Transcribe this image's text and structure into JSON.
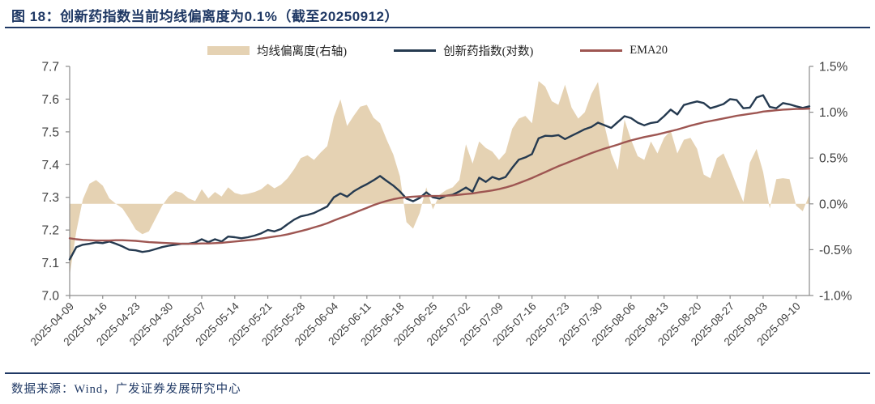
{
  "header": {
    "title": "图 18：创新药指数当前均线偏离度为0.1%（截至20250912）"
  },
  "footer": {
    "source": "数据来源：Wind，广发证券发展研究中心"
  },
  "colors": {
    "accent_navy": "#1f3864",
    "area_tan": "#e5d2b3",
    "index_line": "#253a50",
    "ema_line": "#9e5652",
    "axis_text": "#3f3f3f",
    "spine": "#8c8c8c"
  },
  "legend": [
    {
      "label": "均线偏离度(右轴)",
      "type": "area",
      "color": "#e5d2b3"
    },
    {
      "label": "创新药指数(对数)",
      "type": "line",
      "color": "#253a50"
    },
    {
      "label": "EMA20",
      "type": "line",
      "color": "#9e5652"
    }
  ],
  "chart_data": {
    "type": "line",
    "title": "图 18：创新药指数当前均线偏离度为0.1%（截至20250912）",
    "n_points": 113,
    "x_tick_labels": [
      "2025-04-09",
      "2025-04-16",
      "2025-04-23",
      "2025-04-30",
      "2025-05-07",
      "2025-05-14",
      "2025-05-21",
      "2025-05-28",
      "2025-06-04",
      "2025-06-11",
      "2025-06-18",
      "2025-06-25",
      "2025-07-02",
      "2025-07-09",
      "2025-07-16",
      "2025-07-23",
      "2025-07-30",
      "2025-08-06",
      "2025-08-13",
      "2025-08-20",
      "2025-08-27",
      "2025-09-03",
      "2025-09-10"
    ],
    "x_tick_every": 5,
    "left_axis": {
      "min": 7.0,
      "max": 7.7,
      "tick_values": [
        7.7,
        7.6,
        7.5,
        7.4,
        7.3,
        7.2,
        7.1,
        7.0
      ],
      "tick_labels": [
        "7.7",
        "7.6",
        "7.5",
        "7.4",
        "7.3",
        "7.2",
        "7.1",
        "7.0"
      ]
    },
    "right_axis": {
      "min": -1.0,
      "max": 1.5,
      "tick_values": [
        1.5,
        1.0,
        0.5,
        0.0,
        -0.5,
        -1.0
      ],
      "tick_labels": [
        "1.5%",
        "1.0%",
        "0.5%",
        "0.0%",
        "-0.5%",
        "-1.0%"
      ]
    },
    "series": [
      {
        "name": "均线偏离度(右轴)",
        "type": "area",
        "axis": "right",
        "color": "#e5d2b3",
        "values": [
          -0.78,
          -0.3,
          0.05,
          0.22,
          0.26,
          0.2,
          0.06,
          0.0,
          -0.05,
          -0.16,
          -0.28,
          -0.33,
          -0.3,
          -0.16,
          -0.02,
          0.08,
          0.14,
          0.12,
          0.06,
          0.03,
          0.16,
          0.06,
          0.13,
          0.08,
          0.18,
          0.12,
          0.1,
          0.11,
          0.13,
          0.16,
          0.22,
          0.17,
          0.21,
          0.28,
          0.38,
          0.5,
          0.53,
          0.48,
          0.56,
          0.63,
          0.95,
          1.14,
          0.85,
          0.96,
          1.06,
          1.08,
          0.94,
          0.88,
          0.7,
          0.54,
          0.3,
          -0.2,
          -0.27,
          -0.1,
          0.18,
          -0.06,
          0.1,
          0.15,
          0.18,
          0.26,
          0.65,
          0.44,
          0.68,
          0.61,
          0.57,
          0.48,
          0.56,
          0.82,
          0.93,
          0.96,
          0.88,
          1.34,
          1.28,
          1.12,
          1.08,
          1.3,
          1.05,
          0.93,
          1.0,
          1.2,
          1.33,
          0.85,
          0.55,
          0.37,
          0.92,
          0.7,
          0.52,
          0.48,
          0.68,
          0.55,
          0.72,
          0.8,
          0.55,
          0.7,
          0.72,
          0.6,
          0.32,
          0.28,
          0.5,
          0.55,
          0.38,
          0.2,
          0.02,
          0.45,
          0.6,
          0.35,
          -0.05,
          0.27,
          0.28,
          0.27,
          -0.02,
          -0.08,
          0.1
        ]
      },
      {
        "name": "创新药指数(对数)",
        "type": "line",
        "axis": "left",
        "color": "#253a50",
        "values": [
          7.11,
          7.148,
          7.155,
          7.158,
          7.162,
          7.16,
          7.165,
          7.158,
          7.15,
          7.14,
          7.138,
          7.133,
          7.136,
          7.142,
          7.148,
          7.152,
          7.155,
          7.158,
          7.158,
          7.162,
          7.172,
          7.163,
          7.172,
          7.165,
          7.18,
          7.178,
          7.175,
          7.178,
          7.183,
          7.19,
          7.2,
          7.196,
          7.203,
          7.218,
          7.232,
          7.242,
          7.246,
          7.252,
          7.262,
          7.272,
          7.3,
          7.312,
          7.302,
          7.318,
          7.33,
          7.34,
          7.352,
          7.365,
          7.35,
          7.336,
          7.318,
          7.296,
          7.288,
          7.298,
          7.315,
          7.3,
          7.296,
          7.305,
          7.308,
          7.318,
          7.33,
          7.317,
          7.36,
          7.347,
          7.362,
          7.355,
          7.362,
          7.39,
          7.415,
          7.422,
          7.432,
          7.48,
          7.488,
          7.487,
          7.49,
          7.478,
          7.488,
          7.498,
          7.508,
          7.515,
          7.528,
          7.52,
          7.512,
          7.53,
          7.548,
          7.542,
          7.528,
          7.52,
          7.527,
          7.53,
          7.548,
          7.568,
          7.553,
          7.582,
          7.588,
          7.593,
          7.588,
          7.572,
          7.578,
          7.585,
          7.6,
          7.597,
          7.572,
          7.574,
          7.605,
          7.612,
          7.576,
          7.572,
          7.588,
          7.584,
          7.578,
          7.573,
          7.578
        ]
      },
      {
        "name": "EMA20",
        "type": "line",
        "axis": "left",
        "color": "#9e5652",
        "values": [
          7.175,
          7.172,
          7.17,
          7.169,
          7.168,
          7.168,
          7.168,
          7.169,
          7.169,
          7.168,
          7.167,
          7.165,
          7.163,
          7.162,
          7.161,
          7.16,
          7.159,
          7.158,
          7.158,
          7.158,
          7.159,
          7.159,
          7.16,
          7.161,
          7.163,
          7.165,
          7.167,
          7.169,
          7.171,
          7.174,
          7.177,
          7.18,
          7.183,
          7.187,
          7.192,
          7.197,
          7.202,
          7.208,
          7.214,
          7.221,
          7.229,
          7.237,
          7.244,
          7.252,
          7.26,
          7.268,
          7.276,
          7.283,
          7.289,
          7.294,
          7.298,
          7.3,
          7.302,
          7.303,
          7.304,
          7.304,
          7.304,
          7.305,
          7.306,
          7.308,
          7.31,
          7.312,
          7.315,
          7.318,
          7.321,
          7.325,
          7.33,
          7.336,
          7.343,
          7.351,
          7.359,
          7.368,
          7.377,
          7.386,
          7.395,
          7.403,
          7.411,
          7.419,
          7.427,
          7.435,
          7.442,
          7.449,
          7.455,
          7.461,
          7.468,
          7.474,
          7.479,
          7.484,
          7.488,
          7.492,
          7.497,
          7.502,
          7.507,
          7.513,
          7.519,
          7.524,
          7.529,
          7.533,
          7.537,
          7.541,
          7.545,
          7.549,
          7.552,
          7.555,
          7.558,
          7.562,
          7.564,
          7.566,
          7.568,
          7.569,
          7.57,
          7.57,
          7.571
        ]
      }
    ]
  }
}
